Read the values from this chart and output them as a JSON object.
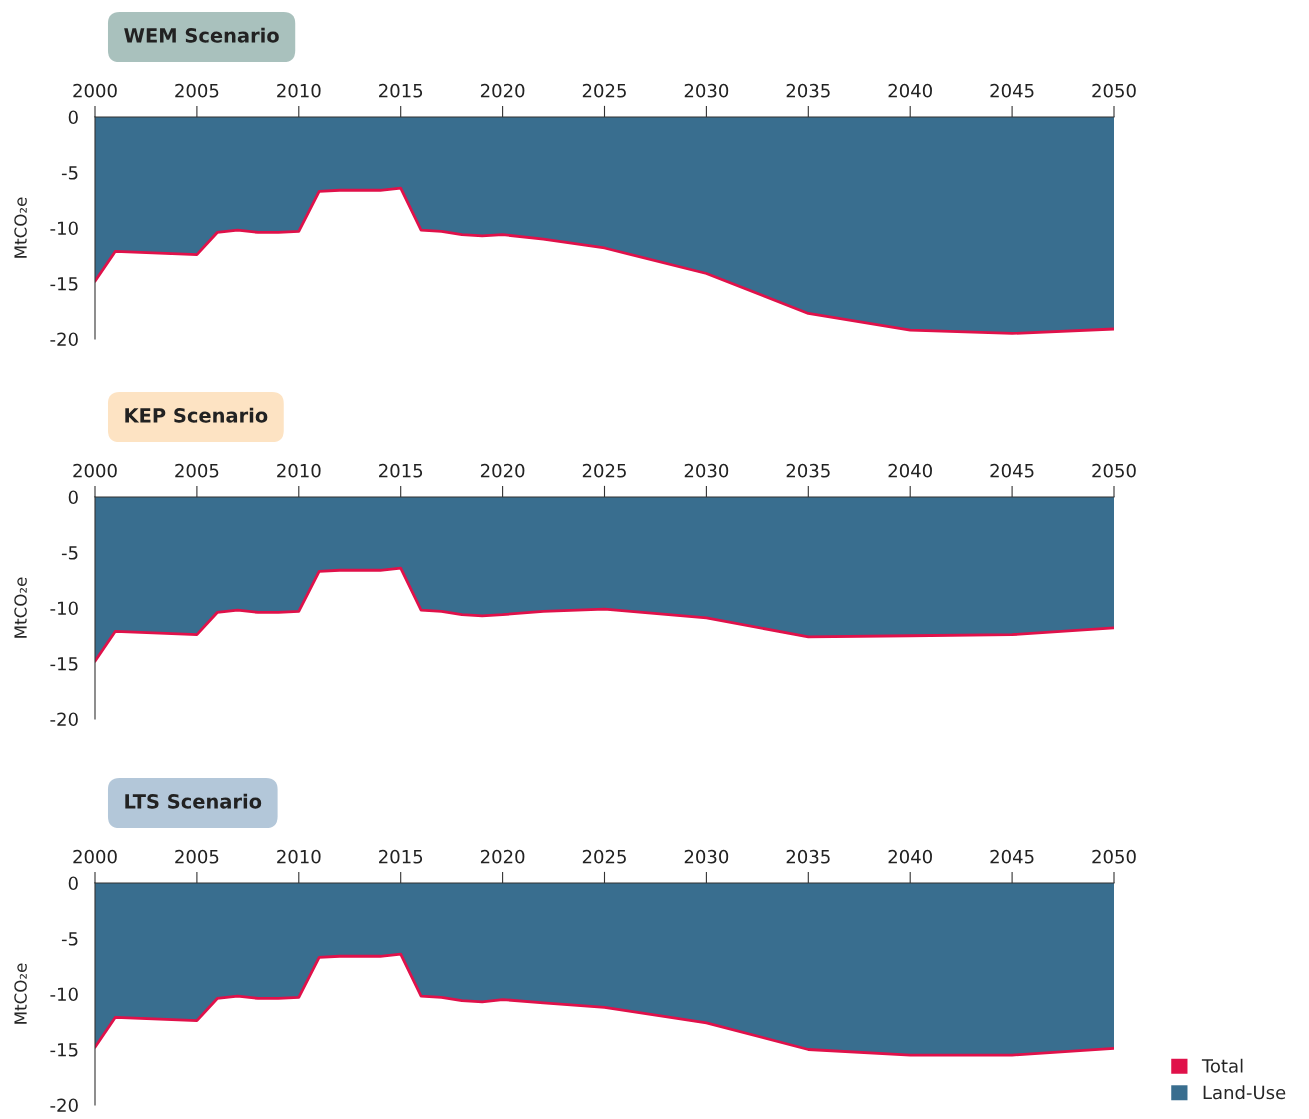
{
  "chart_data": [
    {
      "type": "area",
      "title": "WEM Scenario",
      "ylabel": "MtCO₂e",
      "x": [
        2000,
        2001,
        2005,
        2006,
        2007,
        2008,
        2009,
        2010,
        2011,
        2012,
        2014,
        2015,
        2016,
        2017,
        2018,
        2019,
        2020,
        2022,
        2025,
        2030,
        2035,
        2040,
        2045,
        2050
      ],
      "xlim": [
        2000,
        2050
      ],
      "xticks": [
        2000,
        2005,
        2010,
        2015,
        2020,
        2025,
        2030,
        2035,
        2040,
        2045,
        2050
      ],
      "ylim": [
        -20,
        0
      ],
      "yticks": [
        -20,
        -15,
        -10,
        -5,
        0
      ],
      "grid": false,
      "legend": "bottom right",
      "series": [
        {
          "name": "Total",
          "type": "line",
          "color": "#e0114a",
          "values": [
            -14.8,
            -12.1,
            -12.4,
            -10.4,
            -10.2,
            -10.4,
            -10.4,
            -10.3,
            -6.7,
            -6.6,
            -6.6,
            -6.4,
            -10.2,
            -10.3,
            -10.6,
            -10.7,
            -10.6,
            -11.0,
            -11.8,
            -14.1,
            -17.7,
            -19.2,
            -19.5,
            -19.1
          ]
        },
        {
          "name": "Land-Use",
          "color": "#396e8f",
          "values": [
            -14.8,
            -12.1,
            -12.4,
            -10.4,
            -10.2,
            -10.4,
            -10.4,
            -10.3,
            -6.7,
            -6.6,
            -6.6,
            -6.4,
            -10.2,
            -10.3,
            -10.6,
            -10.7,
            -10.6,
            -11.0,
            -11.8,
            -14.1,
            -17.7,
            -19.2,
            -19.5,
            -19.1
          ]
        }
      ]
    },
    {
      "type": "area",
      "title": "KEP Scenario",
      "ylabel": "MtCO₂e",
      "x": [
        2000,
        2001,
        2005,
        2006,
        2007,
        2008,
        2009,
        2010,
        2011,
        2012,
        2014,
        2015,
        2016,
        2017,
        2018,
        2019,
        2020,
        2022,
        2025,
        2030,
        2035,
        2040,
        2045,
        2050
      ],
      "xlim": [
        2000,
        2050
      ],
      "xticks": [
        2000,
        2005,
        2010,
        2015,
        2020,
        2025,
        2030,
        2035,
        2040,
        2045,
        2050
      ],
      "ylim": [
        -20,
        0
      ],
      "yticks": [
        -20,
        -15,
        -10,
        -5,
        0
      ],
      "grid": false,
      "legend": false,
      "series": [
        {
          "type": "line",
          "color": "#e0114a",
          "values": [
            -14.8,
            -12.1,
            -12.4,
            -10.4,
            -10.2,
            -10.4,
            -10.4,
            -10.3,
            -6.7,
            -6.6,
            -6.6,
            -6.4,
            -10.2,
            -10.3,
            -10.6,
            -10.7,
            -10.6,
            -10.3,
            -10.1,
            -10.9,
            -12.6,
            -12.5,
            -12.4,
            -11.8
          ]
        },
        {
          "color": "#396e8f",
          "values": [
            -14.8,
            -12.1,
            -12.4,
            -10.4,
            -10.2,
            -10.4,
            -10.4,
            -10.3,
            -6.7,
            -6.6,
            -6.6,
            -6.4,
            -10.2,
            -10.3,
            -10.6,
            -10.7,
            -10.6,
            -10.3,
            -10.1,
            -10.9,
            -12.6,
            -12.5,
            -12.4,
            -11.8
          ]
        }
      ]
    },
    {
      "type": "area",
      "title": "LTS Scenario",
      "ylabel": "MtCO₂e",
      "x": [
        2000,
        2001,
        2005,
        2006,
        2007,
        2008,
        2009,
        2010,
        2011,
        2012,
        2014,
        2015,
        2016,
        2017,
        2018,
        2019,
        2020,
        2022,
        2025,
        2030,
        2035,
        2040,
        2045,
        2050
      ],
      "xlim": [
        2000,
        2050
      ],
      "xticks": [
        2000,
        2005,
        2010,
        2015,
        2020,
        2025,
        2030,
        2035,
        2040,
        2045,
        2050
      ],
      "ylim": [
        -20,
        0
      ],
      "yticks": [
        -20,
        -15,
        -10,
        -5,
        0
      ],
      "grid": false,
      "series": [
        {
          "type": "line",
          "color": "#e0114a",
          "values": [
            -14.8,
            -12.1,
            -12.4,
            -10.4,
            -10.2,
            -10.4,
            -10.4,
            -10.3,
            -6.7,
            -6.6,
            -6.6,
            -6.4,
            -10.2,
            -10.3,
            -10.6,
            -10.7,
            -10.5,
            -10.8,
            -11.2,
            -12.6,
            -15.0,
            -15.5,
            -15.5,
            -14.9
          ]
        },
        {
          "color": "#396e8f",
          "values": [
            -14.8,
            -12.1,
            -12.4,
            -10.4,
            -10.2,
            -10.4,
            -10.4,
            -10.3,
            -6.7,
            -6.6,
            -6.6,
            -6.4,
            -10.2,
            -10.3,
            -10.6,
            -10.7,
            -10.5,
            -10.8,
            -11.2,
            -12.6,
            -15.0,
            -15.5,
            -15.5,
            -14.9
          ]
        }
      ]
    }
  ]
}
